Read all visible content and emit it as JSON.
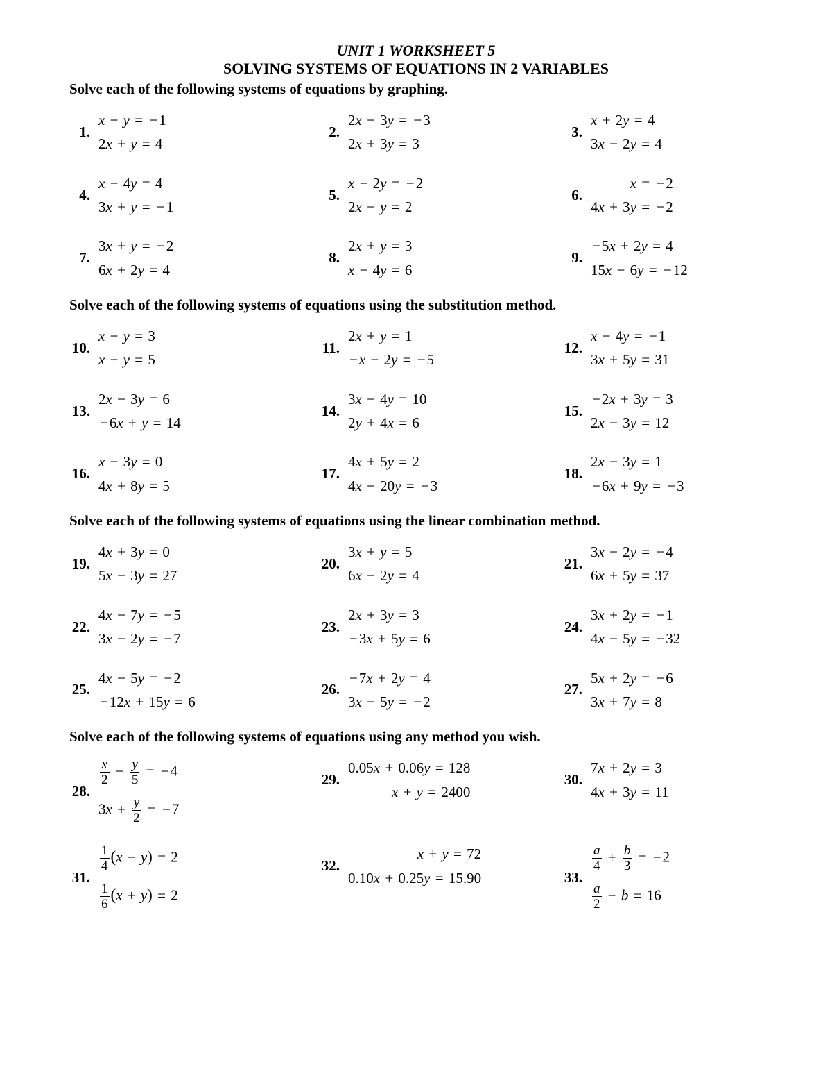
{
  "title_unit": "UNIT 1 WORKSHEET 5",
  "title_main": "SOLVING SYSTEMS OF EQUATIONS IN 2 VARIABLES",
  "sections": [
    {
      "header": "Solve each of the following systems of equations by graphing.",
      "first": true,
      "problems": [
        {
          "n": "1.",
          "eq": [
            "x − y = −1",
            "2x + y = 4"
          ]
        },
        {
          "n": "2.",
          "eq": [
            "2x − 3y = −3",
            "2x + 3y = 3"
          ]
        },
        {
          "n": "3.",
          "eq": [
            "x + 2y = 4",
            "3x − 2y = 4"
          ]
        },
        {
          "n": "4.",
          "eq": [
            "x − 4y = 4",
            "3x + y = −1"
          ]
        },
        {
          "n": "5.",
          "eq": [
            "x − 2y = −2",
            "2x − y = 2"
          ]
        },
        {
          "n": "6.",
          "eq": [
            "x = −2",
            "4x + 3y = −2"
          ],
          "right": true
        },
        {
          "n": "7.",
          "eq": [
            "3x + y = −2",
            "6x + 2y = 4"
          ]
        },
        {
          "n": "8.",
          "eq": [
            "2x + y = 3",
            "x − 4y = 6"
          ]
        },
        {
          "n": "9.",
          "eq": [
            "−5x + 2y = 4",
            "15x − 6y = −12"
          ]
        }
      ]
    },
    {
      "header": "Solve each of the following systems of equations using the substitution method.",
      "problems": [
        {
          "n": "10.",
          "eq": [
            "x − y = 3",
            "x + y = 5"
          ]
        },
        {
          "n": "11.",
          "eq": [
            "2x + y = 1",
            "−x − 2y = −5"
          ]
        },
        {
          "n": "12.",
          "eq": [
            "x − 4y = −1",
            "3x + 5y = 31"
          ]
        },
        {
          "n": "13.",
          "eq": [
            "2x − 3y = 6",
            "−6x + y = 14"
          ]
        },
        {
          "n": "14.",
          "eq": [
            "3x − 4y = 10",
            "2y + 4x = 6"
          ]
        },
        {
          "n": "15.",
          "eq": [
            "−2x + 3y = 3",
            "2x − 3y = 12"
          ]
        },
        {
          "n": "16.",
          "eq": [
            "x − 3y = 0",
            "4x + 8y = 5"
          ]
        },
        {
          "n": "17.",
          "eq": [
            "4x + 5y = 2",
            "4x − 20y = −3"
          ]
        },
        {
          "n": "18.",
          "eq": [
            "2x − 3y = 1",
            "−6x + 9y = −3"
          ]
        }
      ]
    },
    {
      "header": "Solve each of the following systems of equations using the linear combination method.",
      "problems": [
        {
          "n": "19.",
          "eq": [
            "4x + 3y = 0",
            "5x − 3y = 27"
          ]
        },
        {
          "n": "20.",
          "eq": [
            "3x + y = 5",
            "6x − 2y = 4"
          ]
        },
        {
          "n": "21.",
          "eq": [
            "3x − 2y = −4",
            "6x + 5y = 37"
          ]
        },
        {
          "n": "22.",
          "eq": [
            "4x − 7y = −5",
            "3x − 2y = −7"
          ]
        },
        {
          "n": "23.",
          "eq": [
            "2x + 3y = 3",
            "−3x + 5y = 6"
          ]
        },
        {
          "n": "24.",
          "eq": [
            "3x + 2y = −1",
            "4x − 5y = −32"
          ]
        },
        {
          "n": "25.",
          "eq": [
            "4x − 5y = −2",
            "−12x + 15y = 6"
          ]
        },
        {
          "n": "26.",
          "eq": [
            "−7x + 2y = 4",
            "3x − 5y = −2"
          ]
        },
        {
          "n": "27.",
          "eq": [
            "5x + 2y = −6",
            "3x + 7y = 8"
          ]
        }
      ]
    },
    {
      "header": "Solve each of the following systems of equations using any method you wish.",
      "problems": [
        {
          "n": "28.",
          "frac": true,
          "lines": [
            [
              {
                "t": "frac",
                "n": "x",
                "d": "2"
              },
              {
                "t": "op",
                "v": "−"
              },
              {
                "t": "frac",
                "n": "y",
                "d": "5"
              },
              {
                "t": "op",
                "v": "="
              },
              {
                "t": "txt",
                "v": "−4"
              }
            ],
            [
              {
                "t": "txt",
                "v": "3x"
              },
              {
                "t": "op",
                "v": "+"
              },
              {
                "t": "frac",
                "n": "y",
                "d": "2"
              },
              {
                "t": "op",
                "v": "="
              },
              {
                "t": "txt",
                "v": "−7"
              }
            ]
          ]
        },
        {
          "n": "29.",
          "eq": [
            "0.05x + 0.06y = 128",
            "x + y = 2400"
          ],
          "right": true
        },
        {
          "n": "30.",
          "eq": [
            "7x + 2y = 3",
            "4x + 3y = 11"
          ]
        },
        {
          "n": "31.",
          "frac": true,
          "lines": [
            [
              {
                "t": "frac",
                "n": "1",
                "d": "4"
              },
              {
                "t": "paren",
                "v": "("
              },
              {
                "t": "txt",
                "v": "x − y"
              },
              {
                "t": "paren",
                "v": ")"
              },
              {
                "t": "op",
                "v": "="
              },
              {
                "t": "txt",
                "v": "2"
              }
            ],
            [
              {
                "t": "frac",
                "n": "1",
                "d": "6"
              },
              {
                "t": "paren",
                "v": "("
              },
              {
                "t": "txt",
                "v": "x + y"
              },
              {
                "t": "paren",
                "v": ")"
              },
              {
                "t": "op",
                "v": "="
              },
              {
                "t": "txt",
                "v": "2"
              }
            ]
          ]
        },
        {
          "n": "32.",
          "eq": [
            "x + y = 72",
            "0.10x + 0.25y = 15.90"
          ],
          "right": true
        },
        {
          "n": "33.",
          "frac": true,
          "lines": [
            [
              {
                "t": "frac",
                "n": "a",
                "d": "4"
              },
              {
                "t": "op",
                "v": "+"
              },
              {
                "t": "frac",
                "n": "b",
                "d": "3"
              },
              {
                "t": "op",
                "v": "="
              },
              {
                "t": "txt",
                "v": "−2"
              }
            ],
            [
              {
                "t": "frac",
                "n": "a",
                "d": "2"
              },
              {
                "t": "op",
                "v": "−"
              },
              {
                "t": "txt",
                "v": "b"
              },
              {
                "t": "op",
                "v": "="
              },
              {
                "t": "txt",
                "v": "16"
              }
            ]
          ]
        }
      ]
    }
  ]
}
